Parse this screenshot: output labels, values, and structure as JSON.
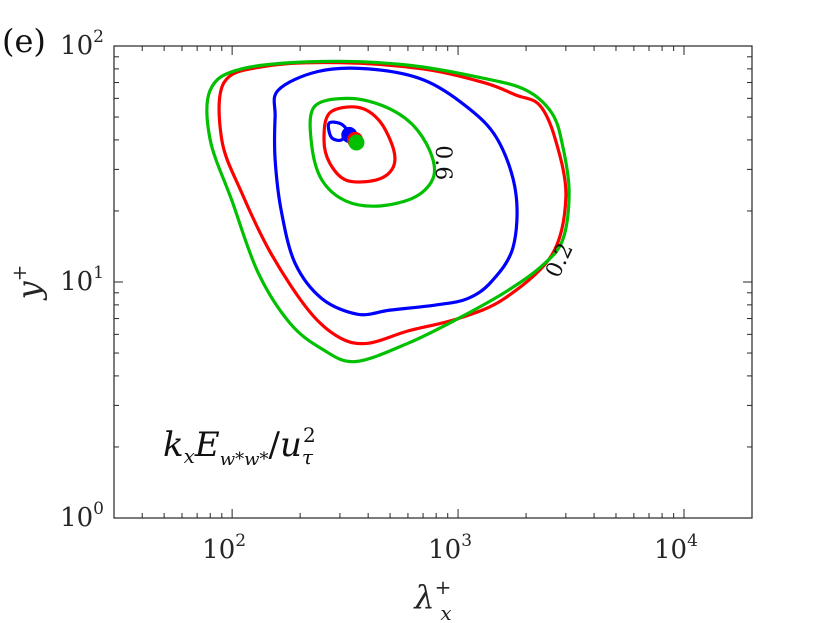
{
  "chart_data": {
    "type": "contour",
    "panel_label": "(e)",
    "xscale": "log",
    "yscale": "log",
    "xlim": [
      30,
      20000
    ],
    "ylim": [
      1,
      100
    ],
    "xlabel": "λx+",
    "ylabel": "y+",
    "xticks": [
      {
        "value": 100,
        "base": "10",
        "exp": "2"
      },
      {
        "value": 1000,
        "base": "10",
        "exp": "3"
      },
      {
        "value": 10000,
        "base": "10",
        "exp": "4"
      }
    ],
    "yticks": [
      {
        "value": 1,
        "base": "10",
        "exp": "0"
      },
      {
        "value": 10,
        "base": "10",
        "exp": "1"
      },
      {
        "value": 100,
        "base": "10",
        "exp": "2"
      }
    ],
    "annotation": "kxEw*w*/uτ2",
    "contour_labels": [
      {
        "text": "0.6",
        "x": 800,
        "y": 32
      },
      {
        "text": "0.2",
        "x": 3000,
        "y": 12
      }
    ],
    "series": [
      {
        "color": "#0000ff",
        "contours": [
          {
            "level": 0.2,
            "points": [
              [
                160,
                65
              ],
              [
                240,
                78
              ],
              [
                400,
                80
              ],
              [
                700,
                72
              ],
              [
                1100,
                55
              ],
              [
                1500,
                40
              ],
              [
                1800,
                24
              ],
              [
                1750,
                14
              ],
              [
                1400,
                10
              ],
              [
                1100,
                8.5
              ],
              [
                800,
                8
              ],
              [
                500,
                7.6
              ],
              [
                360,
                7.3
              ],
              [
                250,
                8.5
              ],
              [
                190,
                12
              ],
              [
                165,
                20
              ],
              [
                155,
                33
              ],
              [
                155,
                50
              ],
              [
                160,
                65
              ]
            ]
          },
          {
            "level": 0.6,
            "points": [
              [
                268,
                47
              ],
              [
                300,
                47
              ],
              [
                320,
                44
              ],
              [
                305,
                40
              ],
              [
                275,
                41
              ],
              [
                268,
                47
              ]
            ]
          }
        ],
        "peak": [
          330,
          42
        ]
      },
      {
        "color": "#ff0000",
        "contours": [
          {
            "level": 0.2,
            "points": [
              [
                92,
                70
              ],
              [
                140,
                82
              ],
              [
                300,
                85
              ],
              [
                700,
                80
              ],
              [
                1300,
                70
              ],
              [
                1800,
                62
              ],
              [
                2300,
                56
              ],
              [
                2700,
                40
              ],
              [
                3000,
                23
              ],
              [
                2600,
                13
              ],
              [
                1600,
                8.5
              ],
              [
                1000,
                7
              ],
              [
                600,
                6.2
              ],
              [
                400,
                5.5
              ],
              [
                300,
                5.8
              ],
              [
                220,
                7.5
              ],
              [
                150,
                13
              ],
              [
                110,
                24
              ],
              [
                90,
                40
              ],
              [
                92,
                70
              ]
            ]
          },
          {
            "level": 0.6,
            "points": [
              [
                270,
                52
              ],
              [
                360,
                55
              ],
              [
                450,
                48
              ],
              [
                520,
                36
              ],
              [
                510,
                30
              ],
              [
                430,
                27
              ],
              [
                320,
                27
              ],
              [
                270,
                32
              ],
              [
                255,
                40
              ],
              [
                270,
                52
              ]
            ]
          }
        ],
        "peak": [
          350,
          40
        ]
      },
      {
        "color": "#00c000",
        "contours": [
          {
            "level": 0.2,
            "points": [
              [
                80,
                65
              ],
              [
                110,
                80
              ],
              [
                250,
                86
              ],
              [
                600,
                83
              ],
              [
                1300,
                73
              ],
              [
                2000,
                65
              ],
              [
                2600,
                52
              ],
              [
                2900,
                38
              ],
              [
                3100,
                24
              ],
              [
                2900,
                15
              ],
              [
                2300,
                11.5
              ],
              [
                1600,
                9
              ],
              [
                1000,
                7
              ],
              [
                600,
                5.5
              ],
              [
                350,
                4.6
              ],
              [
                250,
                5.2
              ],
              [
                180,
                6.7
              ],
              [
                130,
                11
              ],
              [
                100,
                22
              ],
              [
                80,
                40
              ],
              [
                80,
                65
              ]
            ]
          },
          {
            "level": 0.6,
            "points": [
              [
                230,
                55
              ],
              [
                320,
                60
              ],
              [
                460,
                56
              ],
              [
                620,
                47
              ],
              [
                750,
                36
              ],
              [
                780,
                28
              ],
              [
                650,
                23
              ],
              [
                450,
                21
              ],
              [
                320,
                22
              ],
              [
                250,
                27
              ],
              [
                225,
                38
              ],
              [
                230,
                55
              ]
            ]
          }
        ],
        "peak": [
          355,
          39
        ]
      }
    ]
  }
}
